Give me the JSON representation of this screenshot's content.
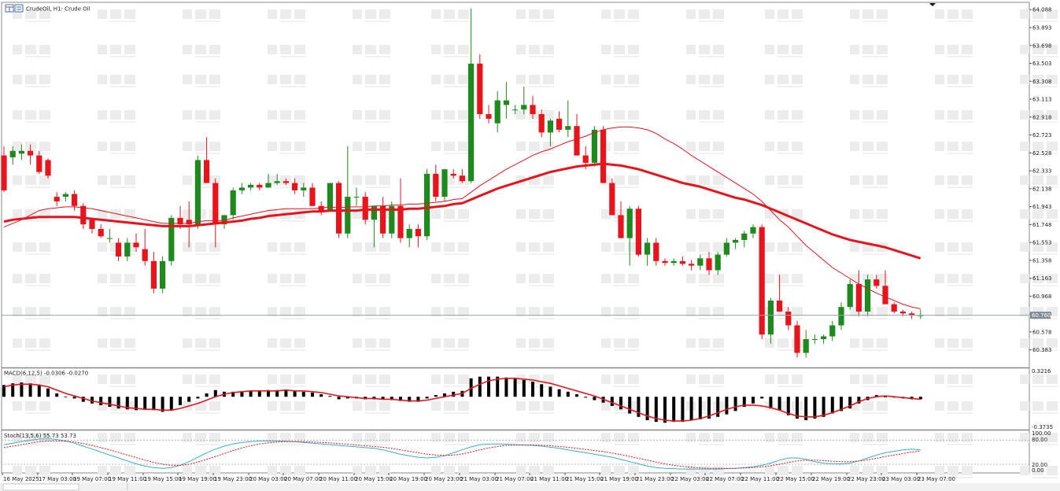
{
  "chart_data": [
    {
      "type": "candlestick",
      "title": "CrudeOil, H1:  Crude Oil",
      "current_price_label": "60.760",
      "ylim": [
        60.2,
        64.15
      ],
      "y_ticks": [
        "64.088",
        "63.893",
        "63.698",
        "63.503",
        "63.308",
        "63.113",
        "62.918",
        "62.723",
        "62.528",
        "62.333",
        "62.138",
        "61.943",
        "61.748",
        "61.553",
        "61.358",
        "61.163",
        "60.968",
        "60.773",
        "60.578",
        "60.383"
      ],
      "x_ticks": [
        "16 May 2025",
        "17 May 03:00",
        "19 May 07:00",
        "19 May 11:00",
        "19 May 15:00",
        "19 May 19:00",
        "19 May 23:00",
        "20 May 03:00",
        "20 May 07:00",
        "20 May 11:00",
        "20 May 15:00",
        "20 May 19:00",
        "20 May 23:00",
        "21 May 03:00",
        "21 May 07:00",
        "21 May 11:00",
        "21 May 15:00",
        "21 May 19:00",
        "21 May 23:00",
        "22 May 03:00",
        "22 May 07:00",
        "22 May 11:00",
        "22 May 15:00",
        "22 May 19:00",
        "22 May 23:00",
        "23 May 03:00",
        "23 May 07:00"
      ],
      "candles_ohlc": [
        [
          62.5,
          62.6,
          62.1,
          62.12
        ],
        [
          62.48,
          62.6,
          62.4,
          62.55
        ],
        [
          62.52,
          62.62,
          62.45,
          62.55
        ],
        [
          62.55,
          62.62,
          62.4,
          62.5
        ],
        [
          62.5,
          62.55,
          62.3,
          62.32
        ],
        [
          62.45,
          62.47,
          62.25,
          62.28
        ],
        [
          62.05,
          62.1,
          61.95,
          62.0
        ],
        [
          62.05,
          62.1,
          62.0,
          62.08
        ],
        [
          62.08,
          62.12,
          61.9,
          61.95
        ],
        [
          61.95,
          61.98,
          61.7,
          61.75
        ],
        [
          61.8,
          61.82,
          61.65,
          61.7
        ],
        [
          61.7,
          61.75,
          61.6,
          61.62
        ],
        [
          61.6,
          61.7,
          61.55,
          61.6
        ],
        [
          61.55,
          61.6,
          61.35,
          61.4
        ],
        [
          61.4,
          61.6,
          61.35,
          61.55
        ],
        [
          61.55,
          61.65,
          61.45,
          61.5
        ],
        [
          61.48,
          61.7,
          61.3,
          61.35
        ],
        [
          61.35,
          61.45,
          61.0,
          61.05
        ],
        [
          61.05,
          61.4,
          61.0,
          61.35
        ],
        [
          61.35,
          61.85,
          61.3,
          61.82
        ],
        [
          61.82,
          61.95,
          61.7,
          61.75
        ],
        [
          61.8,
          62.0,
          61.5,
          61.75
        ],
        [
          61.75,
          62.5,
          61.7,
          62.45
        ],
        [
          62.45,
          62.7,
          62.2,
          62.2
        ],
        [
          62.2,
          62.25,
          61.5,
          61.75
        ],
        [
          61.75,
          61.85,
          61.7,
          61.85
        ],
        [
          61.85,
          62.15,
          61.8,
          62.12
        ],
        [
          62.12,
          62.2,
          62.08,
          62.15
        ],
        [
          62.15,
          62.2,
          62.12,
          62.18
        ],
        [
          62.18,
          62.2,
          62.12,
          62.15
        ],
        [
          62.15,
          62.3,
          62.15,
          62.2
        ],
        [
          62.2,
          62.3,
          62.18,
          62.22
        ],
        [
          62.22,
          62.25,
          62.18,
          62.2
        ],
        [
          62.2,
          62.25,
          62.08,
          62.12
        ],
        [
          62.12,
          62.2,
          62.05,
          62.15
        ],
        [
          62.15,
          62.2,
          61.95,
          61.95
        ],
        [
          61.95,
          62.0,
          61.85,
          61.9
        ],
        [
          61.9,
          62.2,
          61.9,
          62.2
        ],
        [
          62.2,
          62.22,
          61.6,
          61.65
        ],
        [
          61.65,
          62.6,
          61.6,
          62.05
        ],
        [
          62.05,
          62.15,
          61.95,
          62.05
        ],
        [
          62.05,
          62.1,
          61.75,
          61.8
        ],
        [
          61.8,
          61.95,
          61.5,
          61.95
        ],
        [
          61.95,
          62.05,
          61.6,
          61.65
        ],
        [
          61.65,
          62.0,
          61.6,
          61.95
        ],
        [
          61.95,
          62.25,
          61.55,
          61.6
        ],
        [
          61.6,
          61.75,
          61.5,
          61.7
        ],
        [
          61.7,
          61.75,
          61.5,
          61.62
        ],
        [
          61.62,
          62.35,
          61.58,
          62.3
        ],
        [
          62.3,
          62.4,
          62.0,
          62.05
        ],
        [
          62.05,
          62.35,
          62.0,
          62.35
        ],
        [
          62.3,
          62.35,
          62.25,
          62.28
        ],
        [
          62.28,
          62.35,
          62.2,
          62.22
        ],
        [
          62.22,
          64.1,
          62.2,
          63.5
        ],
        [
          63.5,
          63.6,
          62.9,
          62.95
        ],
        [
          62.95,
          63.05,
          62.85,
          62.9
        ],
        [
          62.85,
          63.2,
          62.75,
          63.1
        ],
        [
          63.05,
          63.3,
          62.9,
          63.1
        ],
        [
          63.0,
          63.05,
          62.95,
          63.0
        ],
        [
          63.0,
          63.25,
          62.95,
          63.05
        ],
        [
          63.05,
          63.15,
          62.9,
          62.95
        ],
        [
          62.95,
          63.0,
          62.7,
          62.75
        ],
        [
          62.75,
          62.9,
          62.6,
          62.88
        ],
        [
          62.9,
          62.98,
          62.75,
          62.78
        ],
        [
          62.78,
          63.1,
          62.7,
          62.82
        ],
        [
          62.82,
          62.95,
          62.5,
          62.5
        ],
        [
          62.5,
          62.6,
          62.35,
          62.42
        ],
        [
          62.42,
          62.82,
          62.38,
          62.78
        ],
        [
          62.78,
          62.82,
          62.2,
          62.2
        ],
        [
          62.2,
          62.25,
          61.85,
          61.85
        ],
        [
          61.85,
          62.0,
          61.6,
          61.6
        ],
        [
          61.6,
          61.95,
          61.3,
          61.92
        ],
        [
          61.92,
          61.95,
          61.4,
          61.42
        ],
        [
          61.42,
          61.6,
          61.3,
          61.55
        ],
        [
          61.55,
          61.6,
          61.3,
          61.35
        ],
        [
          61.35,
          61.38,
          61.3,
          61.33
        ],
        [
          61.33,
          61.38,
          61.3,
          61.35
        ],
        [
          61.35,
          61.4,
          61.3,
          61.32
        ],
        [
          61.32,
          61.36,
          61.25,
          61.3
        ],
        [
          61.3,
          61.42,
          61.25,
          61.38
        ],
        [
          61.38,
          61.45,
          61.2,
          61.25
        ],
        [
          61.25,
          61.45,
          61.2,
          61.42
        ],
        [
          61.42,
          61.6,
          61.4,
          61.55
        ],
        [
          61.55,
          61.6,
          61.48,
          61.58
        ],
        [
          61.58,
          61.68,
          61.5,
          61.65
        ],
        [
          61.65,
          61.75,
          61.6,
          61.72
        ],
        [
          61.72,
          61.75,
          60.5,
          60.55
        ],
        [
          60.55,
          60.95,
          60.45,
          60.92
        ],
        [
          60.92,
          61.2,
          60.8,
          60.8
        ],
        [
          60.8,
          60.85,
          60.6,
          60.65
        ],
        [
          60.65,
          60.7,
          60.3,
          60.35
        ],
        [
          60.35,
          60.6,
          60.3,
          60.5
        ],
        [
          60.5,
          60.55,
          60.45,
          60.5
        ],
        [
          60.5,
          60.55,
          60.45,
          60.53
        ],
        [
          60.53,
          60.7,
          60.48,
          60.65
        ],
        [
          60.65,
          60.9,
          60.6,
          60.85
        ],
        [
          60.85,
          61.15,
          60.82,
          61.1
        ],
        [
          61.1,
          61.25,
          60.75,
          60.8
        ],
        [
          60.8,
          61.2,
          60.75,
          61.15
        ],
        [
          61.15,
          61.2,
          61.05,
          61.08
        ],
        [
          61.08,
          61.25,
          60.88,
          60.88
        ],
        [
          60.88,
          60.9,
          60.78,
          60.8
        ],
        [
          60.8,
          60.82,
          60.75,
          60.78
        ],
        [
          60.78,
          60.8,
          60.72,
          60.76
        ],
        [
          60.76,
          60.82,
          60.72,
          60.76
        ]
      ],
      "ma_fast": [
        61.72,
        61.76,
        61.8,
        61.85,
        61.9,
        61.92,
        61.93,
        61.94,
        61.94,
        61.93,
        61.92,
        61.9,
        61.88,
        61.86,
        61.84,
        61.82,
        61.8,
        61.78,
        61.76,
        61.76,
        61.76,
        61.76,
        61.78,
        61.79,
        61.79,
        61.79,
        61.82,
        61.84,
        61.86,
        61.88,
        61.9,
        61.91,
        61.92,
        61.92,
        61.92,
        61.92,
        61.93,
        61.94,
        61.93,
        61.94,
        61.94,
        61.94,
        61.95,
        61.95,
        61.96,
        61.96,
        61.97,
        61.97,
        61.98,
        61.99,
        62.0,
        62.02,
        62.03,
        62.1,
        62.17,
        62.23,
        62.29,
        62.35,
        62.4,
        62.45,
        62.5,
        62.54,
        62.57,
        62.61,
        62.65,
        62.68,
        62.71,
        62.75,
        62.78,
        62.8,
        62.81,
        62.81,
        62.8,
        62.78,
        62.74,
        62.68,
        62.63,
        62.57,
        62.5,
        62.44,
        62.38,
        62.32,
        62.26,
        62.2,
        62.14,
        62.08,
        62.0,
        61.9,
        61.8,
        61.72,
        61.62,
        61.52,
        61.44,
        61.36,
        61.28,
        61.22,
        61.16,
        61.1,
        61.05,
        61.0,
        60.96,
        60.92,
        60.88,
        60.85,
        60.83
      ],
      "ma_slow": [
        61.78,
        61.8,
        61.81,
        61.82,
        61.83,
        61.83,
        61.83,
        61.83,
        61.83,
        61.82,
        61.81,
        61.8,
        61.79,
        61.78,
        61.77,
        61.76,
        61.75,
        61.74,
        61.73,
        61.73,
        61.73,
        61.73,
        61.74,
        61.75,
        61.76,
        61.77,
        61.78,
        61.79,
        61.81,
        61.82,
        61.84,
        61.85,
        61.86,
        61.87,
        61.88,
        61.89,
        61.89,
        61.9,
        61.9,
        61.9,
        61.9,
        61.91,
        61.91,
        61.91,
        61.91,
        61.91,
        61.92,
        61.92,
        61.93,
        61.94,
        61.95,
        61.97,
        61.98,
        62.02,
        62.06,
        62.1,
        62.14,
        62.17,
        62.2,
        62.23,
        62.26,
        62.29,
        62.32,
        62.34,
        62.36,
        62.38,
        62.39,
        62.4,
        62.41,
        62.4,
        62.39,
        62.37,
        62.35,
        62.32,
        62.29,
        62.26,
        62.23,
        62.2,
        62.18,
        62.16,
        62.13,
        62.1,
        62.07,
        62.04,
        62.02,
        61.99,
        61.96,
        61.92,
        61.88,
        61.84,
        61.8,
        61.76,
        61.72,
        61.68,
        61.64,
        61.61,
        61.58,
        61.56,
        61.54,
        61.52,
        61.5,
        61.47,
        61.44,
        61.41,
        61.38
      ]
    },
    {
      "type": "bar",
      "title": "MACD(6,12,5) -0.0306 -0.0270",
      "ylim": [
        -0.3735,
        0.3216
      ],
      "y_ticks": [
        "0.3216",
        "-0.3735"
      ],
      "histogram": [
        0.14,
        0.16,
        0.17,
        0.16,
        0.14,
        0.1,
        0.04,
        0.0,
        -0.02,
        -0.06,
        -0.08,
        -0.1,
        -0.12,
        -0.14,
        -0.15,
        -0.16,
        -0.15,
        -0.16,
        -0.18,
        -0.16,
        -0.1,
        -0.06,
        -0.02,
        0.04,
        0.08,
        0.06,
        0.06,
        0.06,
        0.07,
        0.07,
        0.08,
        0.08,
        0.08,
        0.07,
        0.06,
        0.05,
        0.03,
        0.01,
        -0.03,
        -0.02,
        -0.02,
        -0.03,
        -0.03,
        -0.03,
        -0.04,
        -0.05,
        -0.06,
        -0.06,
        -0.02,
        0.02,
        0.04,
        0.06,
        0.07,
        0.22,
        0.24,
        0.24,
        0.24,
        0.23,
        0.22,
        0.2,
        0.18,
        0.15,
        0.12,
        0.09,
        0.06,
        0.03,
        -0.01,
        -0.04,
        -0.07,
        -0.11,
        -0.15,
        -0.2,
        -0.24,
        -0.28,
        -0.3,
        -0.31,
        -0.3,
        -0.3,
        -0.28,
        -0.27,
        -0.26,
        -0.24,
        -0.21,
        -0.17,
        -0.12,
        -0.08,
        -0.02,
        -0.14,
        -0.16,
        -0.22,
        -0.26,
        -0.28,
        -0.26,
        -0.24,
        -0.2,
        -0.17,
        -0.14,
        -0.08,
        -0.04,
        0.02,
        0.0,
        -0.01,
        -0.02,
        -0.03,
        -0.03
      ],
      "signal": [
        0.12,
        0.14,
        0.15,
        0.15,
        0.14,
        0.12,
        0.08,
        0.04,
        0.01,
        -0.02,
        -0.05,
        -0.07,
        -0.09,
        -0.11,
        -0.13,
        -0.14,
        -0.15,
        -0.15,
        -0.16,
        -0.16,
        -0.14,
        -0.11,
        -0.08,
        -0.04,
        0.0,
        0.03,
        0.05,
        0.06,
        0.07,
        0.07,
        0.07,
        0.07,
        0.08,
        0.07,
        0.07,
        0.06,
        0.05,
        0.03,
        0.01,
        0.0,
        -0.01,
        -0.02,
        -0.02,
        -0.03,
        -0.03,
        -0.04,
        -0.05,
        -0.05,
        -0.04,
        -0.02,
        0.0,
        0.02,
        0.04,
        0.1,
        0.15,
        0.19,
        0.21,
        0.22,
        0.22,
        0.21,
        0.2,
        0.18,
        0.16,
        0.13,
        0.1,
        0.07,
        0.04,
        0.01,
        -0.03,
        -0.07,
        -0.11,
        -0.15,
        -0.19,
        -0.23,
        -0.26,
        -0.28,
        -0.29,
        -0.29,
        -0.28,
        -0.26,
        -0.23,
        -0.19,
        -0.15,
        -0.12,
        -0.1,
        -0.1,
        -0.11,
        -0.13,
        -0.16,
        -0.2,
        -0.23,
        -0.24,
        -0.24,
        -0.22,
        -0.19,
        -0.15,
        -0.11,
        -0.06,
        -0.02,
        0.0,
        0.01,
        0.0,
        -0.01,
        -0.02,
        -0.03
      ]
    },
    {
      "type": "line",
      "title": "Stoch(13,5,6) 55.73 53.73",
      "ylim": [
        0,
        100
      ],
      "y_ticks": [
        "100.00",
        "80.00",
        "20.00",
        "0.00"
      ],
      "main": [
        70,
        74,
        78,
        82,
        85,
        86,
        84,
        80,
        74,
        66,
        58,
        50,
        42,
        34,
        26,
        18,
        12,
        8,
        6,
        8,
        14,
        24,
        36,
        48,
        58,
        66,
        72,
        76,
        78,
        80,
        80,
        80,
        79,
        78,
        76,
        74,
        72,
        70,
        68,
        66,
        64,
        62,
        60,
        56,
        50,
        44,
        40,
        36,
        34,
        36,
        40,
        48,
        56,
        64,
        70,
        72,
        72,
        71,
        70,
        69,
        68,
        66,
        63,
        60,
        56,
        52,
        48,
        44,
        40,
        36,
        30,
        24,
        18,
        12,
        8,
        6,
        5,
        4,
        4,
        4,
        4,
        4,
        5,
        6,
        8,
        10,
        14,
        20,
        28,
        34,
        34,
        30,
        24,
        20,
        18,
        18,
        20,
        26,
        34,
        42,
        48,
        52,
        56,
        58,
        56
      ],
      "signal": [
        62,
        66,
        70,
        74,
        78,
        80,
        80,
        79,
        77,
        73,
        68,
        62,
        56,
        49,
        42,
        35,
        28,
        22,
        17,
        14,
        14,
        17,
        23,
        30,
        38,
        46,
        54,
        61,
        67,
        72,
        75,
        77,
        78,
        78,
        78,
        77,
        76,
        75,
        73,
        71,
        69,
        67,
        65,
        63,
        60,
        56,
        52,
        48,
        44,
        42,
        41,
        42,
        45,
        50,
        56,
        61,
        65,
        68,
        69,
        69,
        69,
        68,
        67,
        65,
        63,
        60,
        57,
        54,
        51,
        47,
        43,
        38,
        33,
        28,
        23,
        18,
        14,
        11,
        9,
        7,
        6,
        6,
        6,
        6,
        7,
        8,
        10,
        13,
        17,
        22,
        26,
        28,
        28,
        27,
        25,
        24,
        24,
        26,
        29,
        33,
        38,
        42,
        46,
        50,
        53
      ]
    }
  ]
}
